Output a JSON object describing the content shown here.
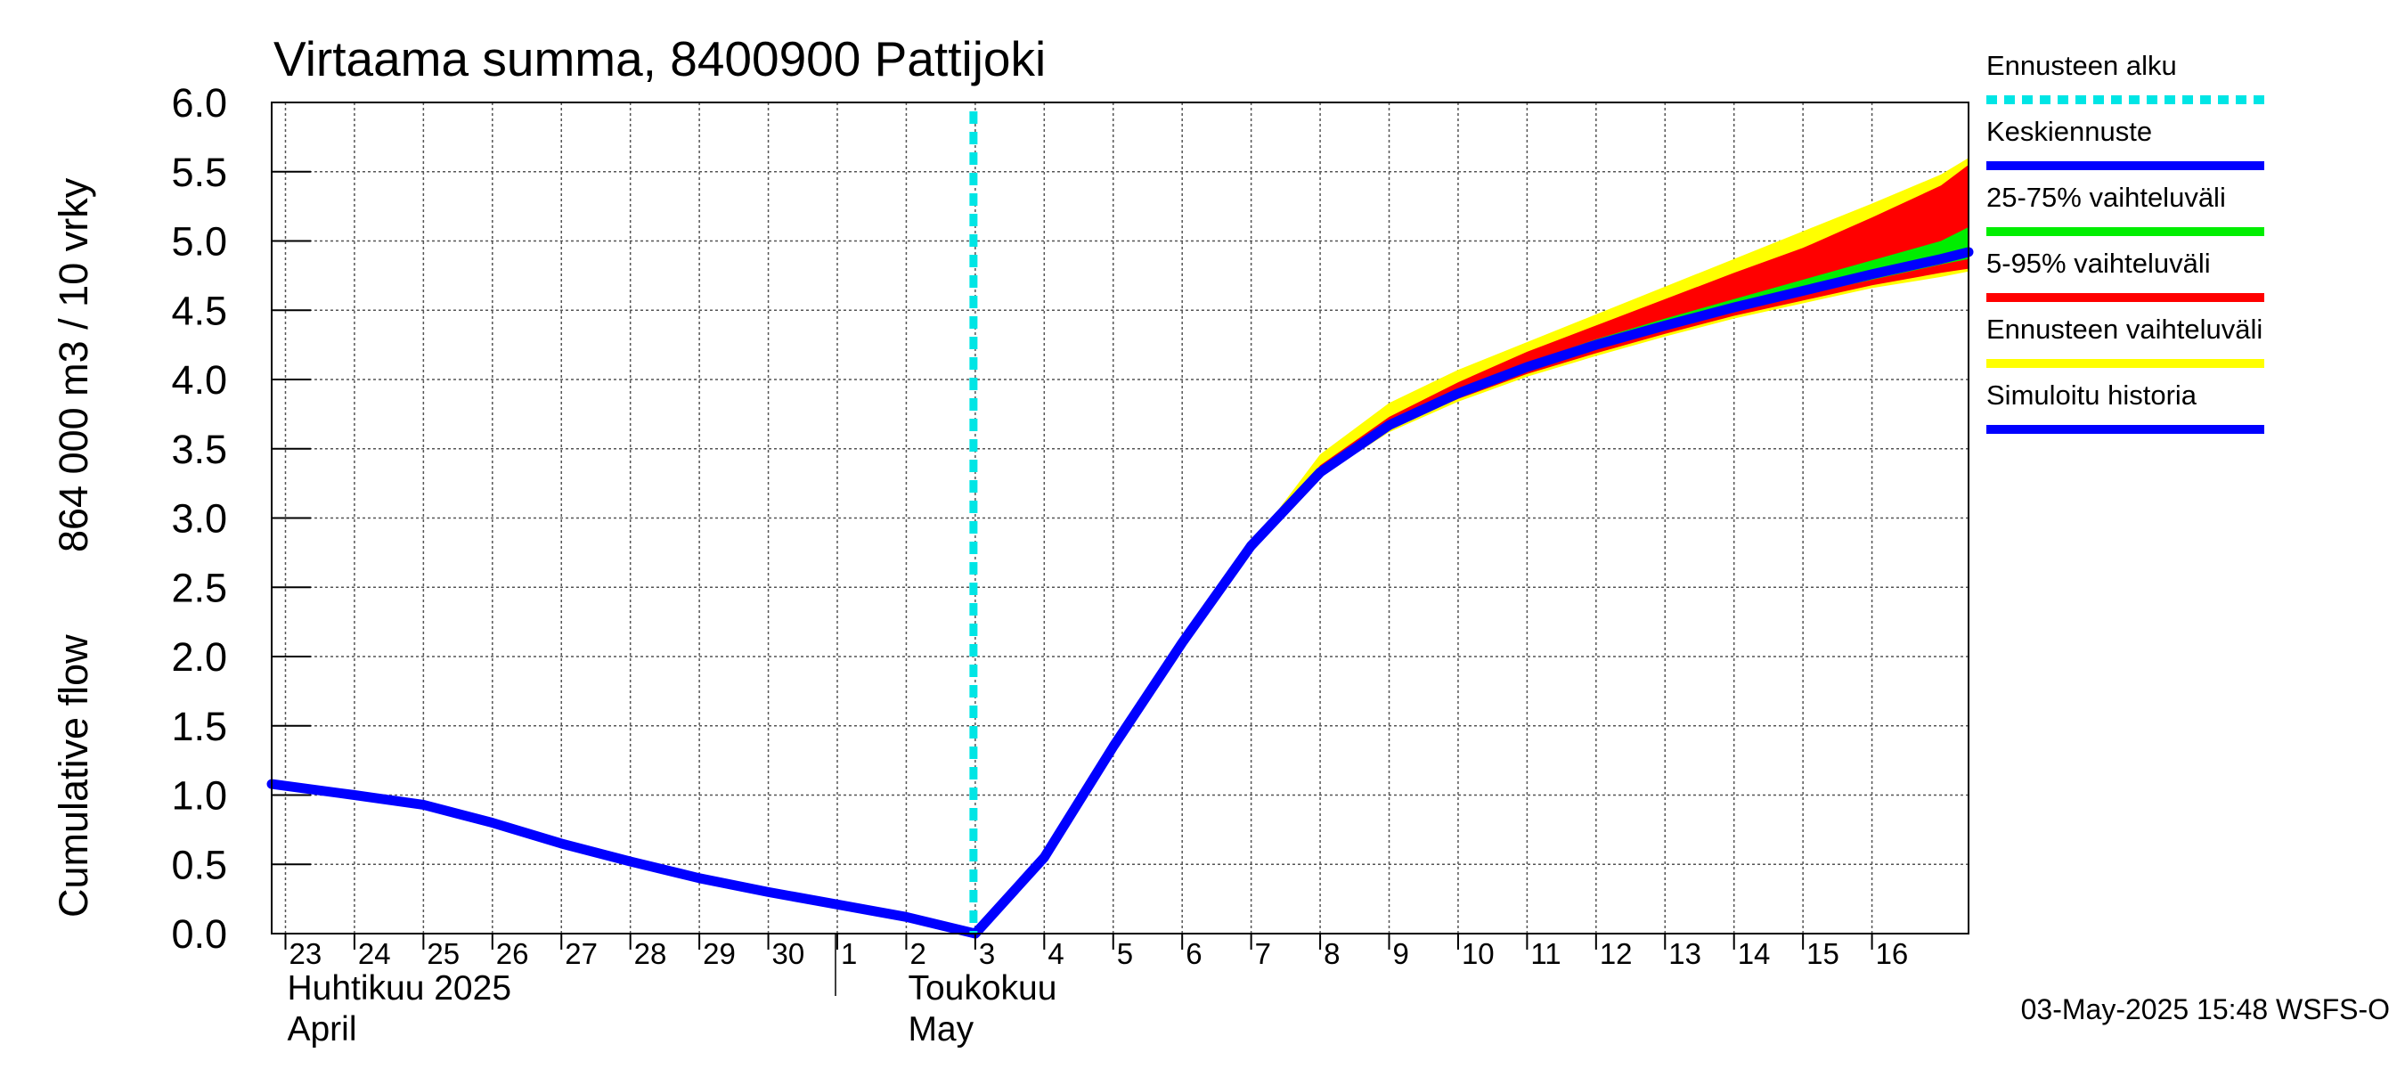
{
  "chart_data": {
    "type": "area",
    "title": "Virtaama summa, 8400900 Pattijoki",
    "ylabel_line1": "Cumulative flow",
    "ylabel_line2": "864 000 m3 / 10 vrky",
    "ylim": [
      0,
      6
    ],
    "yticks": [
      "0.0",
      "0.5",
      "1.0",
      "1.5",
      "2.0",
      "2.5",
      "3.0",
      "3.5",
      "4.0",
      "4.5",
      "5.0",
      "5.5",
      "6.0"
    ],
    "xlim_days": [
      -0.2,
      24.4
    ],
    "xtick_labels": [
      "23",
      "24",
      "25",
      "26",
      "27",
      "28",
      "29",
      "30",
      "1",
      "2",
      "3",
      "4",
      "5",
      "6",
      "7",
      "8",
      "9",
      "10",
      "11",
      "12",
      "13",
      "14",
      "15",
      "16"
    ],
    "month_labels": [
      {
        "line1": "Huhtikuu  2025",
        "line2": "April",
        "day": 0
      },
      {
        "line1": "Toukokuu",
        "line2": "May",
        "day": 9
      }
    ],
    "month_boundary_day": 8,
    "forecast_start_day": 10,
    "colors": {
      "forecast_start": "#00e5e5",
      "mean": "#0000ff",
      "p25_75": "#00ee00",
      "p5_95": "#ff0000",
      "range": "#ffff00",
      "history": "#0000ff"
    },
    "series": {
      "history": {
        "name": "Simuloitu historia",
        "x": [
          -0.2,
          1,
          2,
          3,
          4,
          5,
          6,
          7,
          8,
          9,
          10,
          11,
          12,
          13,
          14,
          15
        ],
        "y": [
          1.08,
          1.0,
          0.93,
          0.8,
          0.65,
          0.52,
          0.4,
          0.3,
          0.21,
          0.12,
          0.0,
          0.55,
          1.35,
          2.1,
          2.8,
          3.33
        ]
      },
      "forecast_x": [
        14,
        15,
        16,
        17,
        18,
        19,
        20,
        21,
        22,
        23,
        24,
        24.4
      ],
      "mean": [
        2.8,
        3.33,
        3.67,
        3.9,
        4.09,
        4.25,
        4.39,
        4.52,
        4.64,
        4.76,
        4.87,
        4.92
      ],
      "p25": [
        2.8,
        3.32,
        3.65,
        3.88,
        4.07,
        4.22,
        4.36,
        4.49,
        4.61,
        4.72,
        4.83,
        4.87
      ],
      "p75": [
        2.8,
        3.35,
        3.69,
        3.92,
        4.12,
        4.29,
        4.44,
        4.58,
        4.72,
        4.86,
        5.0,
        5.1
      ],
      "p5": [
        2.8,
        3.31,
        3.64,
        3.86,
        4.04,
        4.19,
        4.33,
        4.46,
        4.57,
        4.68,
        4.77,
        4.8
      ],
      "p95": [
        2.8,
        3.38,
        3.73,
        3.98,
        4.2,
        4.39,
        4.58,
        4.77,
        4.95,
        5.17,
        5.4,
        5.55
      ],
      "min": [
        2.8,
        3.3,
        3.62,
        3.84,
        4.02,
        4.17,
        4.31,
        4.44,
        4.55,
        4.66,
        4.74,
        4.78
      ],
      "max": [
        2.8,
        3.46,
        3.83,
        4.07,
        4.27,
        4.47,
        4.67,
        4.87,
        5.07,
        5.27,
        5.48,
        5.6
      ]
    },
    "legend": [
      {
        "label": "Ennusteen alku",
        "key": "forecast_start",
        "style": "dashed"
      },
      {
        "label": "Keskiennuste",
        "key": "mean",
        "style": "solid"
      },
      {
        "label": "25-75% vaihteluväli",
        "key": "p25_75",
        "style": "solid"
      },
      {
        "label": "5-95% vaihteluväli",
        "key": "p5_95",
        "style": "solid"
      },
      {
        "label": "Ennusteen vaihteluväli",
        "key": "range",
        "style": "solid"
      },
      {
        "label": "Simuloitu historia",
        "key": "history",
        "style": "solid"
      }
    ],
    "footer": "03-May-2025 15:48 WSFS-O"
  }
}
